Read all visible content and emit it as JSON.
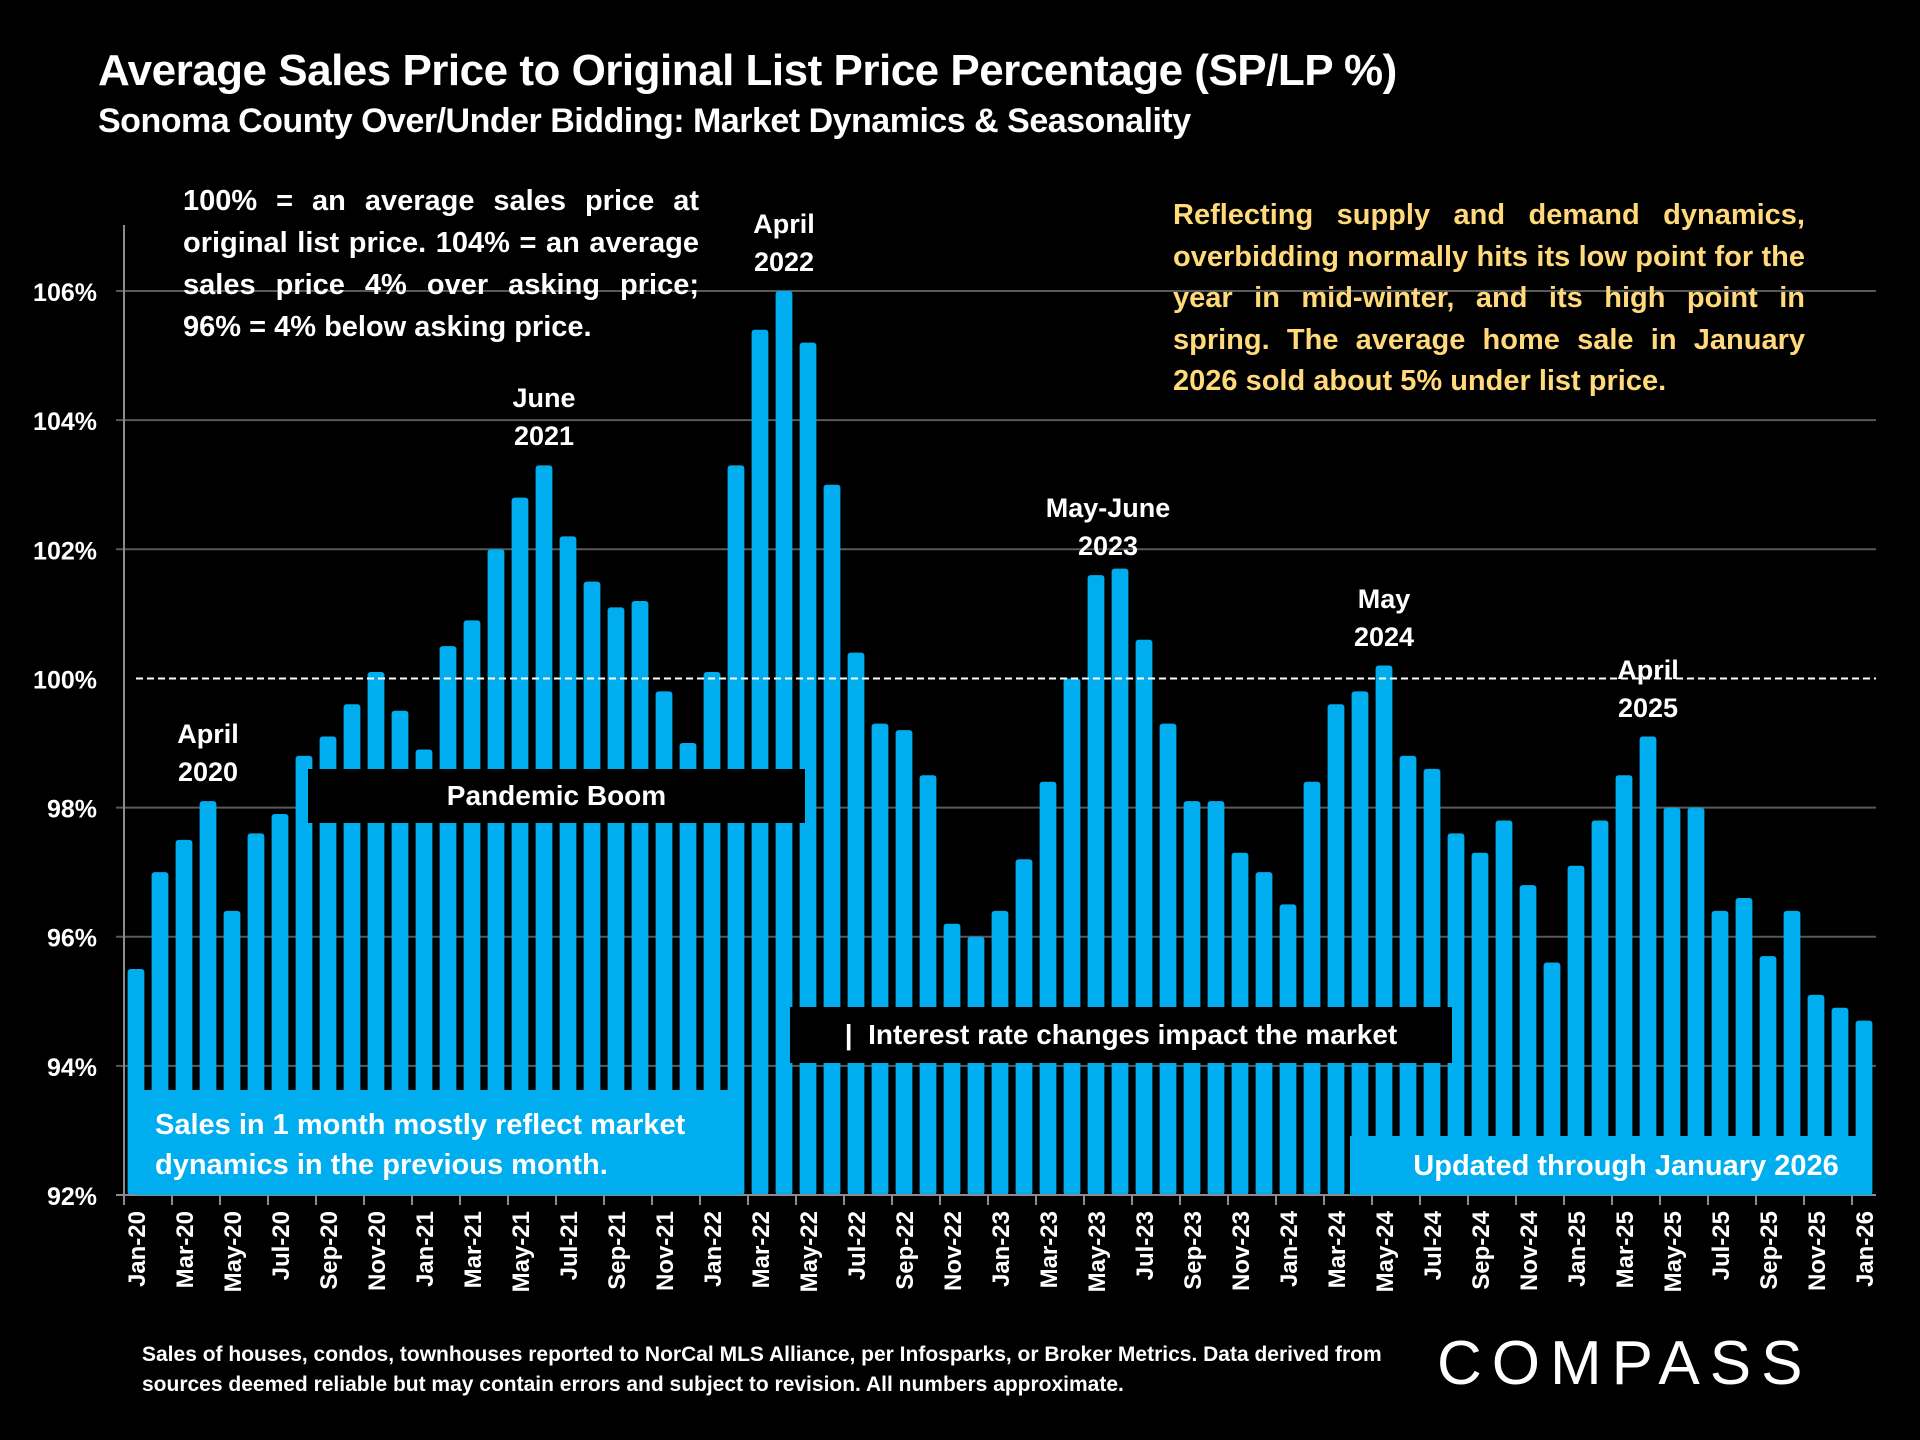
{
  "header": {
    "title": "Average Sales Price to Original List Price Percentage (SP/LP %)",
    "subtitle": "Sonoma County Over/Under Bidding: Market Dynamics & Seasonality"
  },
  "notes": {
    "definition": "100% = an average sales price at original list price. 104% = an average sales price 4% over asking price; 96% = 4% below asking price.",
    "seasonality": "Reflecting supply and demand dynamics, overbidding normally hits its low point for the year in mid-winter, and its high point in spring. The average home sale in January 2026 sold about 5% under list price.",
    "lag": "Sales in 1 month mostly reflect market dynamics in the previous month.",
    "updated": "Updated through January 2026"
  },
  "bands": {
    "pandemic": "Pandemic Boom",
    "interest": "|  Interest rate changes impact the market"
  },
  "peak_labels": [
    {
      "line1": "April",
      "line2": "2020",
      "month": "Apr-20"
    },
    {
      "line1": "June",
      "line2": "2021",
      "month": "Jun-21"
    },
    {
      "line1": "April",
      "line2": "2022",
      "month": "Apr-22"
    },
    {
      "line1": "May-June",
      "line2": "2023",
      "month": "May-23"
    },
    {
      "line1": "May",
      "line2": "2024",
      "month": "May-24"
    },
    {
      "line1": "April",
      "line2": "2025",
      "month": "Apr-25"
    }
  ],
  "footer": {
    "source": "Sales of houses, condos, townhouses reported to NorCal MLS Alliance, per Infosparks, or Broker Metrics. Data derived from sources deemed reliable but may contain errors and subject to revision. All numbers approximate.",
    "brand": "COMPASS"
  },
  "colors": {
    "bar": "#00aeef",
    "background": "#000000",
    "annotation": "#ffd97a",
    "gridline": "#595959"
  },
  "chart_data": {
    "type": "bar",
    "title": "Average Sales Price to Original List Price Percentage (SP/LP %)",
    "subtitle": "Sonoma County Over/Under Bidding: Market Dynamics & Seasonality",
    "xlabel": "",
    "ylabel": "",
    "ylim": [
      92,
      107
    ],
    "yticks": [
      92,
      94,
      96,
      98,
      100,
      102,
      104,
      106
    ],
    "ytick_labels": [
      "92%",
      "94%",
      "96%",
      "98%",
      "100%",
      "102%",
      "104%",
      "106%"
    ],
    "reference_line": {
      "value": 100,
      "style": "dashed"
    },
    "grid": true,
    "legend": "none",
    "categories": [
      "Jan-20",
      "Feb-20",
      "Mar-20",
      "Apr-20",
      "May-20",
      "Jun-20",
      "Jul-20",
      "Aug-20",
      "Sep-20",
      "Oct-20",
      "Nov-20",
      "Dec-20",
      "Jan-21",
      "Feb-21",
      "Mar-21",
      "Apr-21",
      "May-21",
      "Jun-21",
      "Jul-21",
      "Aug-21",
      "Sep-21",
      "Oct-21",
      "Nov-21",
      "Dec-21",
      "Jan-22",
      "Feb-22",
      "Mar-22",
      "Apr-22",
      "May-22",
      "Jun-22",
      "Jul-22",
      "Aug-22",
      "Sep-22",
      "Oct-22",
      "Nov-22",
      "Dec-22",
      "Jan-23",
      "Feb-23",
      "Mar-23",
      "Apr-23",
      "May-23",
      "Jun-23",
      "Jul-23",
      "Aug-23",
      "Sep-23",
      "Oct-23",
      "Nov-23",
      "Dec-23",
      "Jan-24",
      "Feb-24",
      "Mar-24",
      "Apr-24",
      "May-24",
      "Jun-24",
      "Jul-24",
      "Aug-24",
      "Sep-24",
      "Oct-24",
      "Nov-24",
      "Dec-24",
      "Jan-25",
      "Feb-25",
      "Mar-25",
      "Apr-25",
      "May-25",
      "Jun-25",
      "Jul-25",
      "Aug-25",
      "Sep-25",
      "Oct-25",
      "Nov-25",
      "Dec-25",
      "Jan-26"
    ],
    "tick_labels_shown": [
      "Jan-20",
      "Mar-20",
      "May-20",
      "Jul-20",
      "Sep-20",
      "Nov-20",
      "Jan-21",
      "Mar-21",
      "May-21",
      "Jul-21",
      "Sep-21",
      "Nov-21",
      "Jan-22",
      "Mar-22",
      "May-22",
      "Jul-22",
      "Sep-22",
      "Nov-22",
      "Jan-23",
      "Mar-23",
      "May-23",
      "Jul-23",
      "Sep-23",
      "Nov-23",
      "Jan-24",
      "Mar-24",
      "May-24",
      "Jul-24",
      "Sep-24",
      "Nov-24",
      "Jan-25",
      "Mar-25",
      "May-25",
      "Jul-25",
      "Sep-25",
      "Nov-25",
      "Jan-26"
    ],
    "values": [
      95.5,
      97.0,
      97.5,
      98.1,
      96.4,
      97.6,
      97.9,
      98.8,
      99.1,
      99.6,
      100.1,
      99.5,
      98.9,
      100.5,
      100.9,
      102.0,
      102.8,
      103.3,
      102.2,
      101.5,
      101.1,
      101.2,
      99.8,
      99.0,
      100.1,
      103.3,
      105.4,
      106.0,
      105.2,
      103.0,
      100.4,
      99.3,
      99.2,
      98.5,
      96.2,
      96.0,
      96.4,
      97.2,
      98.4,
      100.0,
      101.6,
      101.7,
      100.6,
      99.3,
      98.1,
      98.1,
      97.3,
      97.0,
      96.5,
      98.4,
      99.6,
      99.8,
      100.2,
      98.8,
      98.6,
      97.6,
      97.3,
      97.8,
      96.8,
      95.6,
      97.1,
      97.8,
      98.5,
      99.1,
      98.0,
      98.0,
      96.4,
      96.6,
      95.7,
      96.4,
      95.1,
      94.9,
      94.7
    ]
  }
}
